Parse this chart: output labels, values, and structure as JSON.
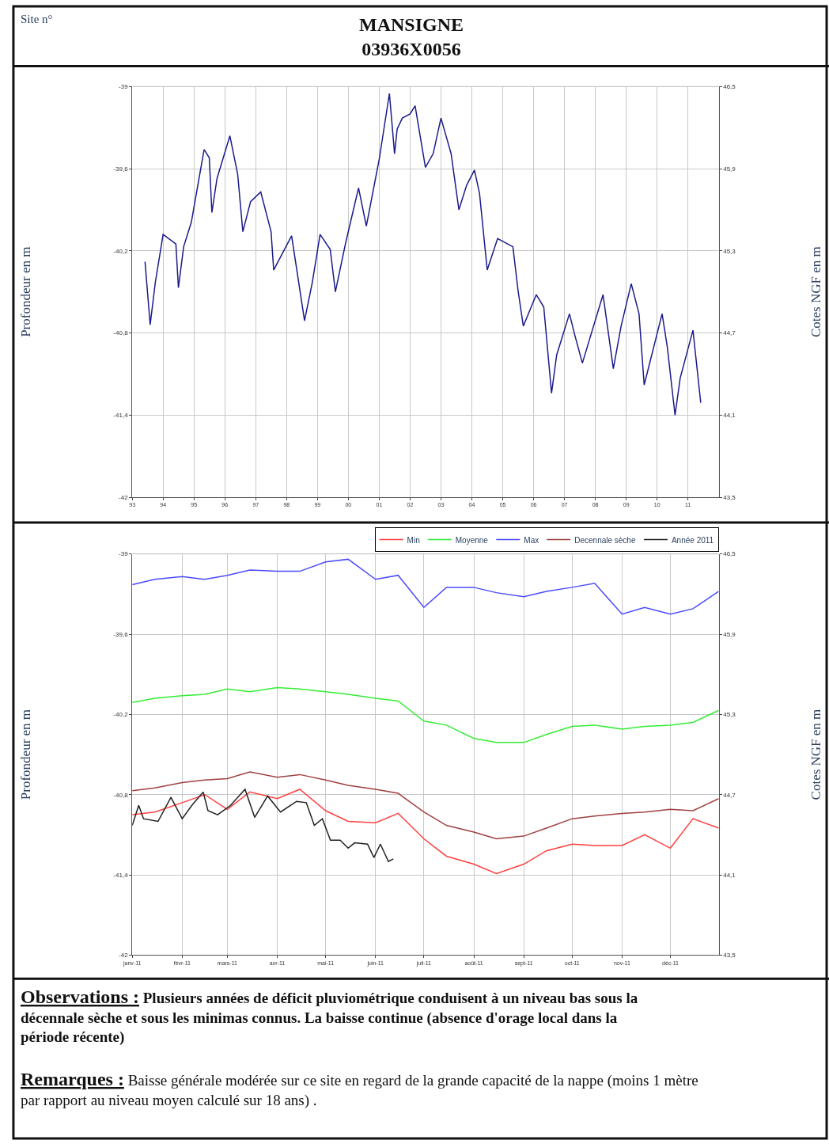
{
  "chart_data": [
    {
      "type": "line",
      "title": "MANSIGNE\n03936X0056",
      "annotations": [
        "Site n°"
      ],
      "ylabel": "Profondeur en m",
      "y2label": "Cotes NGF en m",
      "x": [
        "1993-06",
        "1993-08",
        "1993-10",
        "1994-01",
        "1994-06",
        "1994-07",
        "1994-09",
        "1994-12",
        "1995-05",
        "1995-07",
        "1995-08",
        "1995-10",
        "1996-03",
        "1996-06",
        "1996-08",
        "1996-11",
        "1997-03",
        "1997-07",
        "1997-08",
        "1998-03",
        "1998-08",
        "1998-11",
        "1999-02",
        "1999-06",
        "1999-08",
        "1999-12",
        "2000-05",
        "2000-08",
        "2001-01",
        "2001-05",
        "2001-07",
        "2001-08",
        "2001-10",
        "2002-01",
        "2002-03",
        "2002-07",
        "2002-10",
        "2003-01",
        "2003-05",
        "2003-08",
        "2003-11",
        "2004-02",
        "2004-04",
        "2004-07",
        "2004-11",
        "2005-05",
        "2005-07",
        "2005-09",
        "2006-02",
        "2006-05",
        "2006-08",
        "2006-10",
        "2007-03",
        "2007-05",
        "2007-08",
        "2008-04",
        "2008-08",
        "2008-11",
        "2009-03",
        "2009-06",
        "2009-08",
        "2010-03",
        "2010-05",
        "2010-08",
        "2010-10",
        "2011-03",
        "2011-06"
      ],
      "series": [
        {
          "color": "#1a1a8c",
          "values": [
            -40.28,
            -40.74,
            -40.43,
            -40.08,
            -40.15,
            -40.47,
            -40.17,
            -39.99,
            -39.46,
            -39.52,
            -39.92,
            -39.67,
            -39.36,
            -39.64,
            -40.06,
            -39.84,
            -39.77,
            -40.06,
            -40.34,
            -40.09,
            -40.71,
            -40.43,
            -40.08,
            -40.19,
            -40.5,
            -40.14,
            -39.74,
            -40.02,
            -39.53,
            -39.05,
            -39.49,
            -39.31,
            -39.23,
            -39.2,
            -39.14,
            -39.59,
            -39.49,
            -39.23,
            -39.49,
            -39.9,
            -39.72,
            -39.61,
            -39.78,
            -40.34,
            -40.11,
            -40.17,
            -40.49,
            -40.75,
            -40.52,
            -40.61,
            -41.24,
            -40.96,
            -40.66,
            -40.81,
            -41.02,
            -40.52,
            -41.06,
            -40.75,
            -40.44,
            -40.66,
            -41.18,
            -40.66,
            -40.9,
            -41.4,
            -41.13,
            -40.78,
            -41.31
          ]
        }
      ],
      "xlim": [
        "1993-01-01",
        "2011-12-31"
      ],
      "xticks": [
        {
          "value": "1993-01-01",
          "label": "93"
        },
        {
          "value": "1994-01-01",
          "label": "94"
        },
        {
          "value": "1995-01-01",
          "label": "95"
        },
        {
          "value": "1996-01-01",
          "label": "96"
        },
        {
          "value": "1997-01-01",
          "label": "97"
        },
        {
          "value": "1998-01-01",
          "label": "98"
        },
        {
          "value": "1999-01-01",
          "label": "99"
        },
        {
          "value": "2000-01-01",
          "label": "00"
        },
        {
          "value": "2001-01-01",
          "label": "01"
        },
        {
          "value": "2002-01-01",
          "label": "02"
        },
        {
          "value": "2003-01-01",
          "label": "03"
        },
        {
          "value": "2004-01-01",
          "label": "04"
        },
        {
          "value": "2005-01-01",
          "label": "05"
        },
        {
          "value": "2006-01-01",
          "label": "06"
        },
        {
          "value": "2007-01-01",
          "label": "07"
        },
        {
          "value": "2008-01-01",
          "label": "08"
        },
        {
          "value": "2009-01-01",
          "label": "09"
        },
        {
          "value": "2010-01-01",
          "label": "10"
        },
        {
          "value": "2011-01-01",
          "label": "11"
        }
      ],
      "ylim": [
        -42,
        -39
      ],
      "yticks": [
        -39,
        {
          "value": -39.6,
          "label": "-39,6"
        },
        {
          "value": -40.2,
          "label": "-40,2"
        },
        {
          "value": -40.8,
          "label": "-40,8"
        },
        {
          "value": -41.4,
          "label": "-41,4"
        },
        -42
      ],
      "y2lim": [
        43.5,
        46.5
      ],
      "y2ticks": [
        {
          "value": 43.5,
          "label": "43,5"
        },
        {
          "value": 44.1,
          "label": "44,1"
        },
        {
          "value": 44.7,
          "label": "44,7"
        },
        {
          "value": 45.3,
          "label": "45,3"
        },
        {
          "value": 45.9,
          "label": "45,9"
        },
        {
          "value": 46.5,
          "label": "46,5"
        }
      ],
      "grid": true
    },
    {
      "type": "line",
      "ylabel": "Profondeur en m",
      "y2label": "Cotes NGF en m",
      "annotations": [
        "Observations :",
        "Plusieurs années de déficit pluviométrique conduisent à un niveau bas sous la décennale sèche et sous les minimas connus. La baisse continue (absence d'orage local dans la période récente)",
        "Remarques :",
        "Baisse générale modérée sur ce site en regard de la grande capacité de la nappe (moins 1 mètre par rapport au niveau moyen calculé sur 18 ans) ."
      ],
      "x": [
        "2011-01-01",
        "2011-01-15",
        "2011-02-01",
        "2011-02-15",
        "2011-03-01",
        "2011-03-15",
        "2011-04-01",
        "2011-04-15",
        "2011-05-01",
        "2011-05-15",
        "2011-06-01",
        "2011-06-15",
        "2011-07-01",
        "2011-07-15",
        "2011-08-01",
        "2011-08-15",
        "2011-09-01",
        "2011-09-15",
        "2011-10-01",
        "2011-10-15",
        "2011-11-01",
        "2011-11-15",
        "2011-12-01",
        "2011-12-15",
        "2011-12-31"
      ],
      "series": [
        {
          "name": "Min",
          "color": "#ff4040",
          "values": [
            -40.95,
            -40.93,
            -40.86,
            -40.8,
            -40.91,
            -40.78,
            -40.83,
            -40.76,
            -40.92,
            -41.0,
            -41.01,
            -40.94,
            -41.13,
            -41.26,
            -41.32,
            -41.39,
            -41.32,
            -41.22,
            -41.17,
            -41.18,
            -41.18,
            -41.1,
            -41.2,
            -40.98,
            -41.05
          ]
        },
        {
          "name": "Moyenne",
          "color": "#33ee33",
          "values": [
            -40.11,
            -40.08,
            -40.06,
            -40.05,
            -40.01,
            -40.03,
            -40.0,
            -40.01,
            -40.03,
            -40.05,
            -40.08,
            -40.1,
            -40.25,
            -40.28,
            -40.38,
            -40.41,
            -40.41,
            -40.35,
            -40.29,
            -40.28,
            -40.31,
            -40.29,
            -40.28,
            -40.26,
            -40.17
          ]
        },
        {
          "name": "Max",
          "color": "#4a4aff",
          "values": [
            -39.23,
            -39.19,
            -39.17,
            -39.19,
            -39.16,
            -39.12,
            -39.13,
            -39.13,
            -39.06,
            -39.04,
            -39.19,
            -39.16,
            -39.4,
            -39.25,
            -39.25,
            -39.29,
            -39.32,
            -39.28,
            -39.25,
            -39.22,
            -39.45,
            -39.4,
            -39.45,
            -39.41,
            -39.28
          ]
        },
        {
          "name": "Decennale sèche",
          "color": "#a04040",
          "values": [
            -40.77,
            -40.75,
            -40.71,
            -40.69,
            -40.68,
            -40.63,
            -40.67,
            -40.65,
            -40.69,
            -40.73,
            -40.76,
            -40.79,
            -40.93,
            -41.03,
            -41.08,
            -41.13,
            -41.11,
            -41.05,
            -40.98,
            -40.96,
            -40.94,
            -40.93,
            -40.91,
            -40.92,
            -40.83
          ]
        },
        {
          "name": "Année 2011",
          "color": "#202020",
          "x": [
            "2011-01-01",
            "2011-01-05",
            "2011-01-08",
            "2011-01-17",
            "2011-01-25",
            "2011-02-01",
            "2011-02-07",
            "2011-02-14",
            "2011-02-17",
            "2011-02-23",
            "2011-03-03",
            "2011-03-12",
            "2011-03-18",
            "2011-03-26",
            "2011-04-03",
            "2011-04-13",
            "2011-04-19",
            "2011-04-24",
            "2011-04-29",
            "2011-05-04",
            "2011-05-10",
            "2011-05-15",
            "2011-05-19",
            "2011-05-27",
            "2011-05-31",
            "2011-06-04",
            "2011-06-09",
            "2011-06-12"
          ],
          "values": [
            -41.03,
            -40.88,
            -40.98,
            -41.0,
            -40.82,
            -40.98,
            -40.88,
            -40.78,
            -40.92,
            -40.95,
            -40.88,
            -40.76,
            -40.97,
            -40.81,
            -40.93,
            -40.85,
            -40.86,
            -41.03,
            -40.98,
            -41.14,
            -41.14,
            -41.2,
            -41.16,
            -41.17,
            -41.27,
            -41.17,
            -41.3,
            -41.28
          ]
        }
      ],
      "xlim": [
        "2011-01-01",
        "2011-12-31"
      ],
      "xticks": [
        {
          "value": "2011-01-01",
          "label": "janv-11"
        },
        {
          "value": "2011-02-01",
          "label": "févr-11"
        },
        {
          "value": "2011-03-01",
          "label": "mars-11"
        },
        {
          "value": "2011-04-01",
          "label": "avr-11"
        },
        {
          "value": "2011-05-01",
          "label": "mai-11"
        },
        {
          "value": "2011-06-01",
          "label": "juin-11"
        },
        {
          "value": "2011-07-01",
          "label": "juil-11"
        },
        {
          "value": "2011-08-01",
          "label": "août-11"
        },
        {
          "value": "2011-09-01",
          "label": "sept-11"
        },
        {
          "value": "2011-10-01",
          "label": "oct-11"
        },
        {
          "value": "2011-11-01",
          "label": "nov-11"
        },
        {
          "value": "2011-12-01",
          "label": "déc-11"
        }
      ],
      "ylim": [
        -42,
        -39
      ],
      "yticks": [
        -39,
        {
          "value": -39.6,
          "label": "-39,6"
        },
        {
          "value": -40.2,
          "label": "-40,2"
        },
        {
          "value": -40.8,
          "label": "-40,8"
        },
        {
          "value": -41.4,
          "label": "-41,4"
        },
        -42
      ],
      "y2lim": [
        43.5,
        46.5
      ],
      "y2ticks": [
        {
          "value": 43.5,
          "label": "43,5"
        },
        {
          "value": 44.1,
          "label": "44,1"
        },
        {
          "value": 44.7,
          "label": "44,7"
        },
        {
          "value": 45.3,
          "label": "45,3"
        },
        {
          "value": 45.9,
          "label": "45,9"
        },
        {
          "value": 46.5,
          "label": "46,5"
        }
      ],
      "grid": true,
      "legend": "top right"
    }
  ]
}
